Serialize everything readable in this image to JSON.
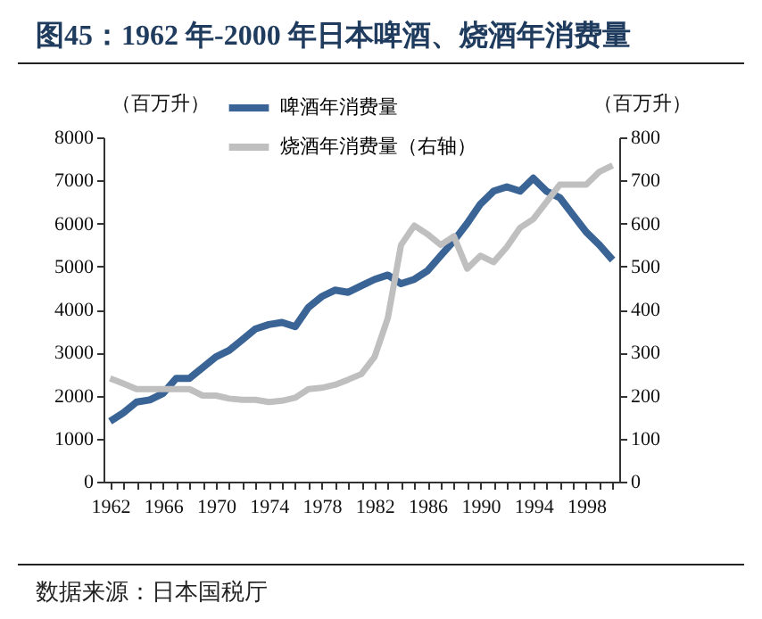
{
  "chart_data": {
    "type": "line",
    "title": "图45：1962 年-2000 年日本啤酒、烧酒年消费量",
    "ylabel": "（百万升）",
    "y2label": "（百万升）",
    "x": [
      1962,
      1963,
      1964,
      1965,
      1966,
      1967,
      1968,
      1969,
      1970,
      1971,
      1972,
      1973,
      1974,
      1975,
      1976,
      1977,
      1978,
      1979,
      1980,
      1981,
      1982,
      1983,
      1984,
      1985,
      1986,
      1987,
      1988,
      1989,
      1990,
      1991,
      1992,
      1993,
      1994,
      1995,
      1996,
      1997,
      1998,
      1999,
      2000
    ],
    "series": [
      {
        "name": "啤酒年消费量",
        "color": "#3a6496",
        "values": [
          1400,
          1600,
          1850,
          1900,
          2050,
          2400,
          2400,
          2650,
          2900,
          3050,
          3300,
          3550,
          3650,
          3700,
          3600,
          4050,
          4300,
          4450,
          4400,
          4550,
          4700,
          4800,
          4600,
          4700,
          4900,
          5250,
          5600,
          6000,
          6450,
          6750,
          6850,
          6750,
          7050,
          6750,
          6600,
          6200,
          5800,
          5500,
          5150
        ]
      },
      {
        "name": "烧酒年消费量（右轴）",
        "color": "#bfbfbf",
        "axis": "y2",
        "values": [
          240,
          228,
          215,
          215,
          215,
          215,
          215,
          200,
          200,
          193,
          190,
          190,
          185,
          188,
          195,
          215,
          218,
          225,
          237,
          250,
          290,
          380,
          550,
          595,
          575,
          550,
          570,
          495,
          525,
          510,
          545,
          590,
          610,
          650,
          690,
          690,
          690,
          720,
          735
        ]
      }
    ],
    "xlim": [
      1961.5,
      2000.5
    ],
    "xticks": [
      1962,
      {
        "value": 1963,
        "label": null
      },
      {
        "value": 1964,
        "label": null
      },
      {
        "value": 1965,
        "label": null
      },
      1966,
      {
        "value": 1967,
        "label": null
      },
      {
        "value": 1968,
        "label": null
      },
      {
        "value": 1969,
        "label": null
      },
      1970,
      {
        "value": 1971,
        "label": null
      },
      {
        "value": 1972,
        "label": null
      },
      {
        "value": 1973,
        "label": null
      },
      1974,
      {
        "value": 1975,
        "label": null
      },
      {
        "value": 1976,
        "label": null
      },
      {
        "value": 1977,
        "label": null
      },
      1978,
      {
        "value": 1979,
        "label": null
      },
      {
        "value": 1980,
        "label": null
      },
      {
        "value": 1981,
        "label": null
      },
      1982,
      {
        "value": 1983,
        "label": null
      },
      {
        "value": 1984,
        "label": null
      },
      {
        "value": 1985,
        "label": null
      },
      1986,
      {
        "value": 1987,
        "label": null
      },
      {
        "value": 1988,
        "label": null
      },
      {
        "value": 1989,
        "label": null
      },
      1990,
      {
        "value": 1991,
        "label": null
      },
      {
        "value": 1992,
        "label": null
      },
      {
        "value": 1993,
        "label": null
      },
      1994,
      {
        "value": 1995,
        "label": null
      },
      {
        "value": 1996,
        "label": null
      },
      {
        "value": 1997,
        "label": null
      },
      1998,
      {
        "value": 1999,
        "label": null
      },
      {
        "value": 2000,
        "label": null
      }
    ],
    "ylim": [
      0,
      8000
    ],
    "yticks": [
      0,
      1000,
      2000,
      3000,
      4000,
      5000,
      6000,
      7000,
      8000
    ],
    "y2lim": [
      0,
      800
    ],
    "y2ticks": [
      0,
      100,
      200,
      300,
      400,
      500,
      600,
      700,
      800
    ],
    "grid": false,
    "legend": "top",
    "marker": "none",
    "line_style": "solid",
    "annotations": [
      "数据来源：日本国税厅"
    ]
  }
}
